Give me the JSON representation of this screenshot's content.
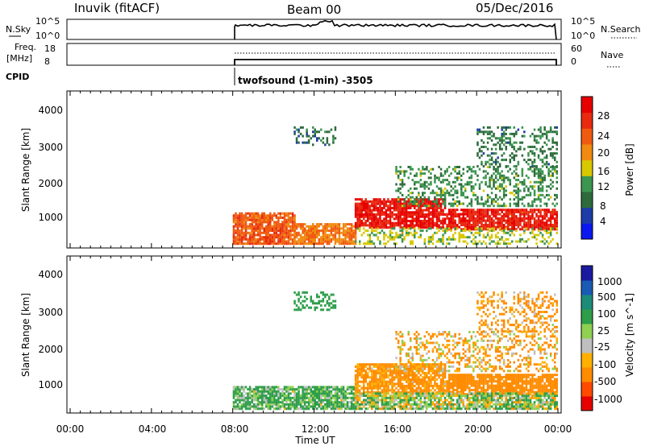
{
  "header": {
    "station": "Inuvik (fitACF)",
    "beam": "Beam 00",
    "date": "05/Dec/2016"
  },
  "top_panels": {
    "nsky": {
      "label": "N.Sky",
      "ticks": [
        "10^5",
        "10^0"
      ],
      "right_ticks": [
        "10^5",
        "10^0"
      ],
      "right_label": "N.Search"
    },
    "freq": {
      "label_line1": "Freq.",
      "label_line2": "[MHz]",
      "ticks": [
        "18",
        "8"
      ],
      "right_ticks": [
        "60",
        "0"
      ],
      "right_label": "Nave"
    },
    "cpid": {
      "label": "CPID",
      "mode": "twofsound (1-min) -3505"
    }
  },
  "x_axis": {
    "label": "Time UT",
    "ticks": [
      "00:00",
      "04:00",
      "08:00",
      "12:00",
      "16:00",
      "20:00",
      "00:00"
    ]
  },
  "colors": {
    "power": [
      "#0a18f0",
      "#1e3ca8",
      "#2e6b3c",
      "#3c9650",
      "#d8c800",
      "#f08a10",
      "#f05a10",
      "#e82a10",
      "#e80000"
    ],
    "velocity": [
      "#e60000",
      "#ff4a00",
      "#ff8c00",
      "#ffb000",
      "#bfbfbf",
      "#8fd050",
      "#2e9e4a",
      "#1c8c78",
      "#1a5ab4",
      "#1a1aa0"
    ]
  },
  "chart_data": [
    {
      "type": "heatmap",
      "name": "power-panel",
      "ylabel": "Slant Range [km]",
      "yticks": [
        "4000",
        "3000",
        "2000",
        "1000"
      ],
      "colorbar": {
        "label": "Power [dB]",
        "ticks": [
          "28",
          "24",
          "20",
          "16",
          "12",
          "8",
          "4"
        ],
        "range": [
          0,
          30
        ]
      },
      "x_range_hours": [
        0,
        24
      ],
      "y_range_km": [
        180,
        4500
      ],
      "data_start_hour": 8,
      "regions": [
        {
          "t": [
            8.0,
            11.0
          ],
          "r": [
            250,
            1100
          ],
          "v": 22
        },
        {
          "t": [
            11.0,
            14.0
          ],
          "r": [
            250,
            800
          ],
          "v": 20
        },
        {
          "t": [
            14.0,
            18.5
          ],
          "r": [
            700,
            1500
          ],
          "v": 27
        },
        {
          "t": [
            18.5,
            24.0
          ],
          "r": [
            650,
            1200
          ],
          "v": 26
        },
        {
          "t": [
            14.0,
            24.0
          ],
          "r": [
            250,
            700
          ],
          "v": 14
        },
        {
          "t": [
            16.0,
            24.0
          ],
          "r": [
            1300,
            2400
          ],
          "v": 11
        },
        {
          "t": [
            20.0,
            24.0
          ],
          "r": [
            2400,
            3500
          ],
          "v": 9
        },
        {
          "t": [
            11.0,
            13.0
          ],
          "r": [
            3000,
            3500
          ],
          "v": 8
        }
      ]
    },
    {
      "type": "heatmap",
      "name": "velocity-panel",
      "ylabel": "Slant Range [km]",
      "yticks": [
        "4000",
        "3000",
        "2000",
        "1000"
      ],
      "colorbar": {
        "label": "Velocity [m s^-1]",
        "ticks": [
          "1000",
          "500",
          "100",
          "25",
          "-25",
          "-100",
          "-500",
          "-1000"
        ],
        "range": [
          -1000,
          1000
        ]
      },
      "x_range_hours": [
        0,
        24
      ],
      "y_range_km": [
        180,
        4500
      ],
      "data_start_hour": 8,
      "regions": [
        {
          "t": [
            8.0,
            14.0
          ],
          "r": [
            250,
            900
          ],
          "v": 150
        },
        {
          "t": [
            14.0,
            18.5
          ],
          "r": [
            700,
            1500
          ],
          "v": -200
        },
        {
          "t": [
            18.5,
            24.0
          ],
          "r": [
            650,
            1200
          ],
          "v": -300
        },
        {
          "t": [
            14.0,
            24.0
          ],
          "r": [
            250,
            700
          ],
          "v": 50
        },
        {
          "t": [
            16.0,
            24.0
          ],
          "r": [
            1300,
            2400
          ],
          "v": -100
        },
        {
          "t": [
            20.0,
            24.0
          ],
          "r": [
            2400,
            3500
          ],
          "v": -150
        },
        {
          "t": [
            11.0,
            13.0
          ],
          "r": [
            3000,
            3500
          ],
          "v": 300
        }
      ]
    }
  ]
}
